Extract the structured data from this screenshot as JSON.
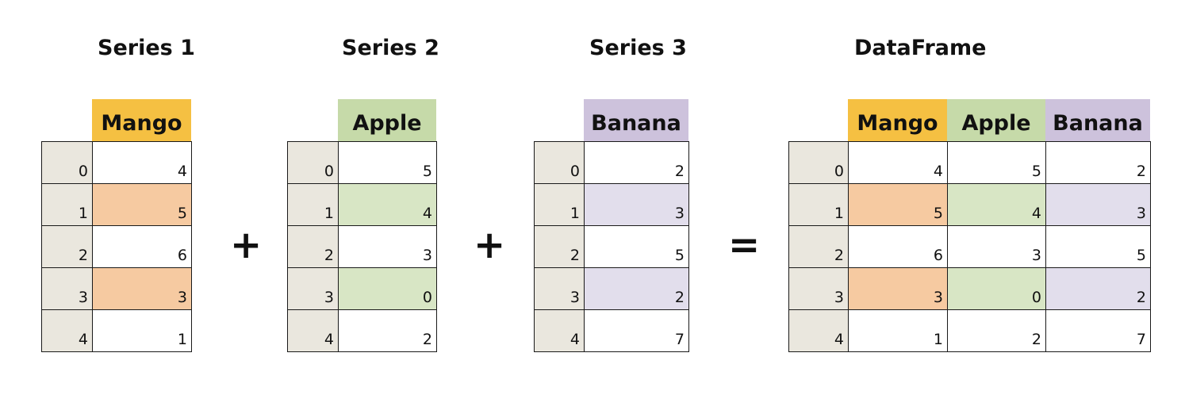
{
  "titles": {
    "s1": "Series 1",
    "s2": "Series 2",
    "s3": "Series 3",
    "df": "DataFrame"
  },
  "headers": {
    "mango": "Mango",
    "apple": "Apple",
    "banana": "Banana"
  },
  "operators": {
    "plus": "+",
    "equals": "="
  },
  "index": [
    "0",
    "1",
    "2",
    "3",
    "4"
  ],
  "mango": [
    "4",
    "5",
    "6",
    "3",
    "1"
  ],
  "apple": [
    "5",
    "4",
    "3",
    "0",
    "2"
  ],
  "banana": [
    "2",
    "3",
    "5",
    "2",
    "7"
  ],
  "highlighted_rows": [
    1,
    3
  ],
  "colors": {
    "mango_header": "#f5c042",
    "apple_header": "#c6daa9",
    "banana_header": "#cdc2dc",
    "mango_highlight": "#f6caa1",
    "apple_highlight": "#d8e6c5",
    "banana_highlight": "#e2deec",
    "index_cell": "#eae7de"
  }
}
